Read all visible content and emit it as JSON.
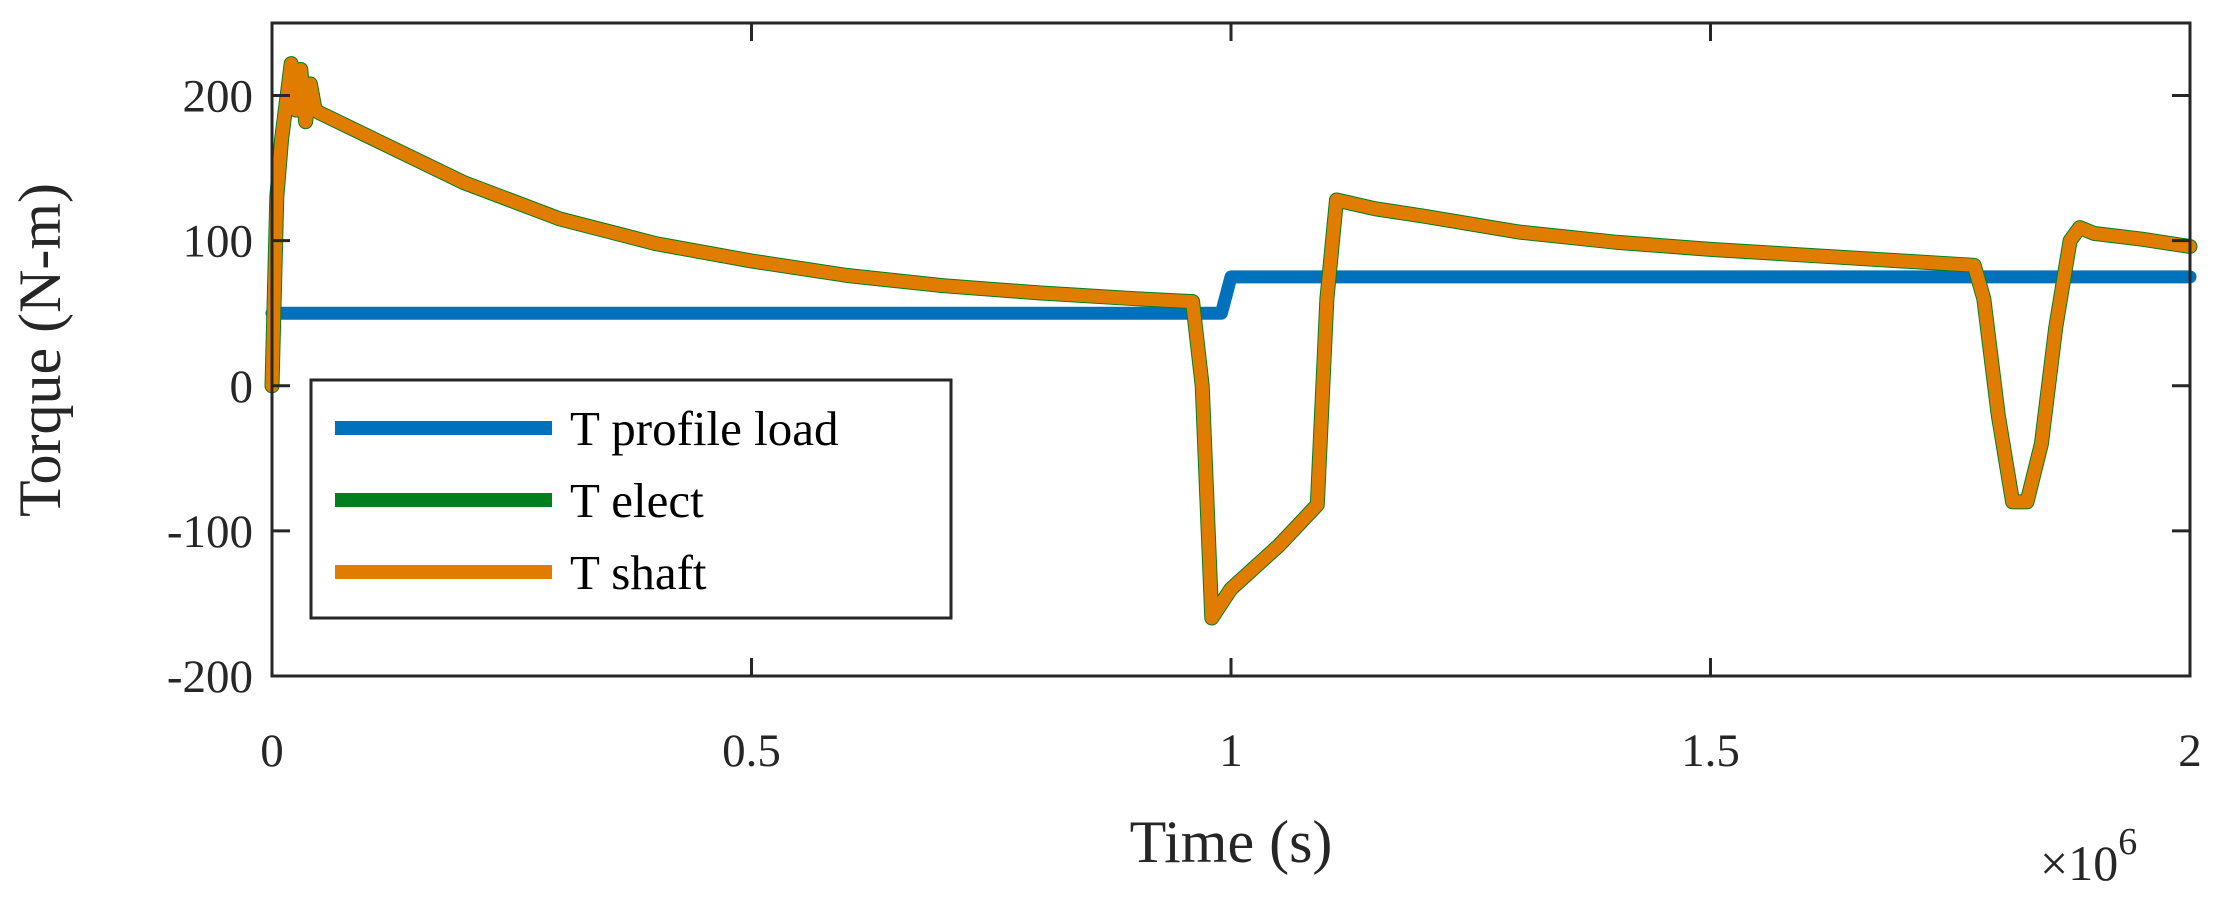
{
  "chart_data": {
    "type": "line",
    "title": "",
    "xlabel": "Time (s)",
    "ylabel": "Torque (N-m)",
    "xlim": [
      0,
      2000000
    ],
    "ylim": [
      -200,
      250
    ],
    "x_ticks": [
      0,
      500000,
      1000000,
      1500000,
      2000000
    ],
    "x_tick_labels": [
      "0",
      "0.5",
      "1",
      "1.5",
      "2"
    ],
    "y_ticks": [
      -200,
      -100,
      0,
      100,
      200
    ],
    "y_tick_labels": [
      "-200",
      "-100",
      "0",
      "100",
      "200"
    ],
    "x_exponent": {
      "base": "×10",
      "power": "6"
    },
    "grid": false,
    "legend_position": "bottom-left",
    "series": [
      {
        "name": "T profile load",
        "color": "#0072BD",
        "x": [
          0,
          990000,
          1000000,
          2000000
        ],
        "y": [
          50,
          50,
          75,
          75
        ]
      },
      {
        "name": "T elect",
        "color": "#007F1E",
        "x": [
          0,
          5000,
          10000,
          20000,
          25000,
          30000,
          35000,
          40000,
          45000,
          50000,
          100000,
          200000,
          300000,
          400000,
          500000,
          600000,
          700000,
          800000,
          900000,
          960000,
          970000,
          980000,
          1000000,
          1050000,
          1090000,
          1100000,
          1110000,
          1150000,
          1200000,
          1300000,
          1400000,
          1500000,
          1600000,
          1700000,
          1775000,
          1785000,
          1800000,
          1815000,
          1830000,
          1845000,
          1860000,
          1875000,
          1885000,
          1900000,
          1950000,
          2000000
        ],
        "y": [
          0,
          130,
          170,
          222,
          190,
          218,
          182,
          208,
          190,
          188,
          172,
          140,
          115,
          98,
          86,
          76,
          69,
          64,
          60,
          58,
          0,
          -160,
          -140,
          -110,
          -82,
          60,
          128,
          122,
          117,
          106,
          99,
          94,
          90,
          86,
          83,
          60,
          -20,
          -80,
          -80,
          -40,
          40,
          100,
          109,
          105,
          101,
          96
        ]
      },
      {
        "name": "T shaft",
        "color": "#E07D00",
        "x": [
          0,
          5000,
          10000,
          20000,
          25000,
          30000,
          35000,
          40000,
          45000,
          50000,
          100000,
          200000,
          300000,
          400000,
          500000,
          600000,
          700000,
          800000,
          900000,
          960000,
          970000,
          980000,
          1000000,
          1050000,
          1090000,
          1100000,
          1110000,
          1150000,
          1200000,
          1300000,
          1400000,
          1500000,
          1600000,
          1700000,
          1775000,
          1785000,
          1800000,
          1815000,
          1830000,
          1845000,
          1860000,
          1875000,
          1885000,
          1900000,
          1950000,
          2000000
        ],
        "y": [
          0,
          130,
          170,
          222,
          190,
          218,
          182,
          208,
          190,
          188,
          172,
          140,
          115,
          98,
          86,
          76,
          69,
          64,
          60,
          58,
          0,
          -160,
          -140,
          -110,
          -82,
          60,
          128,
          122,
          117,
          106,
          99,
          94,
          90,
          86,
          83,
          60,
          -20,
          -80,
          -80,
          -40,
          40,
          100,
          109,
          105,
          101,
          96
        ]
      }
    ]
  }
}
